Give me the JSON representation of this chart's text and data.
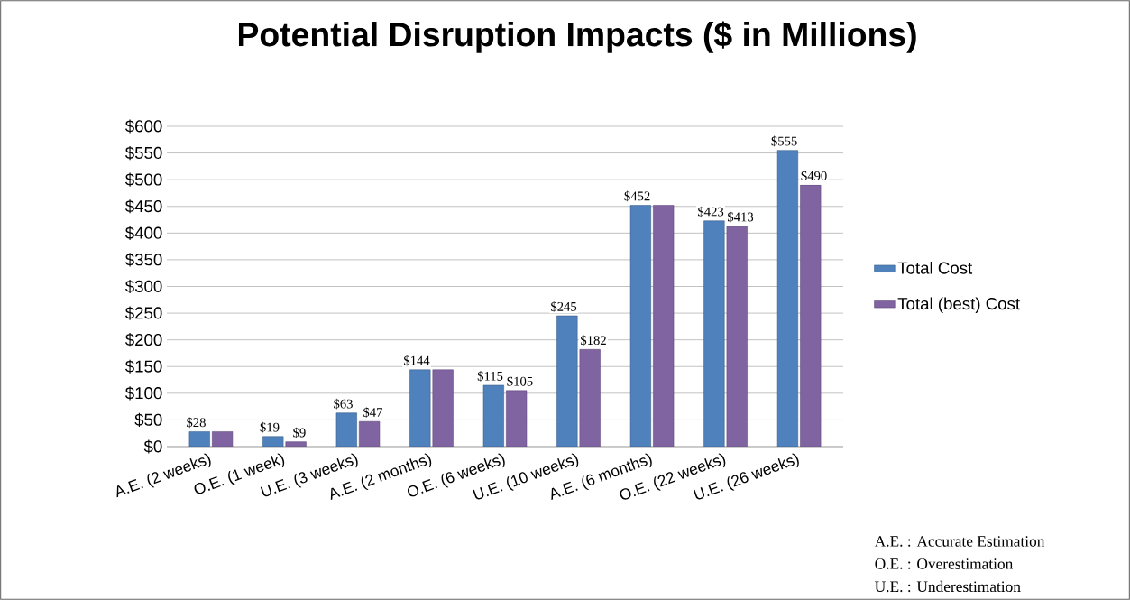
{
  "chart_data": {
    "type": "bar",
    "title": "Potential Disruption Impacts ($ in Millions)",
    "categories": [
      "A.E. (2 weeks)",
      "O.E. (1 week)",
      "U.E. (3 weeks)",
      "A.E. (2 months)",
      "O.E. (6 weeks)",
      "U.E. (10 weeks)",
      "A.E. (6 months)",
      "O.E. (22 weeks)",
      "U.E. (26 weeks)"
    ],
    "series": [
      {
        "name": "Total Cost",
        "color": "#4f81bd",
        "values": [
          28,
          19,
          63,
          144,
          115,
          245,
          452,
          423,
          555
        ],
        "value_labels": [
          "$28",
          "$19",
          "$63",
          "$144",
          "$115",
          "$245",
          "$452",
          "$423",
          "$555"
        ]
      },
      {
        "name": "Total (best) Cost",
        "color": "#8064a2",
        "values": [
          28,
          9,
          47,
          144,
          105,
          182,
          452,
          413,
          490
        ],
        "value_labels": [
          null,
          "$9",
          "$47",
          null,
          "$105",
          "$182",
          null,
          "$413",
          "$490"
        ]
      }
    ],
    "ylim": [
      0,
      600
    ],
    "yticks": [
      {
        "value": 0,
        "label": "$0"
      },
      {
        "value": 50,
        "label": "$50"
      },
      {
        "value": 100,
        "label": "$100"
      },
      {
        "value": 150,
        "label": "$150"
      },
      {
        "value": 200,
        "label": "$200"
      },
      {
        "value": 250,
        "label": "$250"
      },
      {
        "value": 300,
        "label": "$300"
      },
      {
        "value": 350,
        "label": "$350"
      },
      {
        "value": 400,
        "label": "$400"
      },
      {
        "value": 450,
        "label": "$450"
      },
      {
        "value": 500,
        "label": "$500"
      },
      {
        "value": 550,
        "label": "$550"
      },
      {
        "value": 600,
        "label": "$600"
      }
    ],
    "grid": "y",
    "legend": "right",
    "annotations": [
      "A.E. : Accurate Estimation",
      "O.E. : Overestimation",
      "U.E. : Underestimation"
    ]
  }
}
